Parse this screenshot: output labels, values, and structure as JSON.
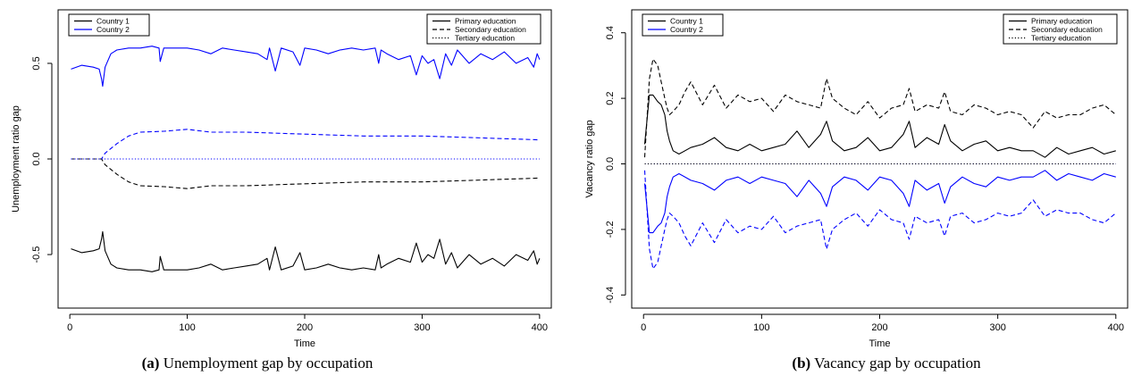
{
  "captions": [
    {
      "tag": "(a)",
      "text": "Unemployment gap by occupation"
    },
    {
      "tag": "(b)",
      "text": "Vacancy gap by occupation"
    }
  ],
  "chart_data": [
    {
      "type": "line",
      "caption": "(a) Unemployment gap by occupation",
      "xlabel": "Time",
      "ylabel": "Unemployment ratio gap",
      "xlim": [
        -10,
        410
      ],
      "ylim": [
        -0.78,
        0.78
      ],
      "xticks": [
        0,
        100,
        200,
        300,
        400
      ],
      "yticks": [
        -0.5,
        0.0,
        0.5
      ],
      "ytick_labels": [
        "-0.5",
        "0.0",
        "0.5"
      ],
      "legend_countries": [
        {
          "label": "Country 1",
          "color": "#000000"
        },
        {
          "label": "Country 2",
          "color": "#0000ff"
        }
      ],
      "legend_education": [
        {
          "label": "Primary education",
          "dash": "solid"
        },
        {
          "label": "Secondary education",
          "dash": "dashed"
        },
        {
          "label": "Tertiary education",
          "dash": "dotted"
        }
      ],
      "series": [
        {
          "name": "Country 2 – Primary education",
          "color": "#0000ff",
          "dash": "solid",
          "x": [
            1,
            10,
            20,
            25,
            27,
            28,
            30,
            35,
            40,
            50,
            60,
            70,
            76,
            77,
            80,
            90,
            100,
            110,
            120,
            130,
            140,
            150,
            160,
            168,
            170,
            175,
            180,
            190,
            196,
            200,
            210,
            220,
            230,
            240,
            250,
            260,
            263,
            265,
            270,
            280,
            290,
            295,
            300,
            305,
            310,
            315,
            320,
            325,
            330,
            340,
            350,
            360,
            370,
            380,
            390,
            395,
            398,
            400
          ],
          "y": [
            0.47,
            0.49,
            0.48,
            0.47,
            0.42,
            0.38,
            0.48,
            0.55,
            0.57,
            0.58,
            0.58,
            0.59,
            0.58,
            0.51,
            0.58,
            0.58,
            0.58,
            0.57,
            0.55,
            0.58,
            0.57,
            0.56,
            0.55,
            0.52,
            0.58,
            0.46,
            0.58,
            0.56,
            0.49,
            0.58,
            0.57,
            0.55,
            0.57,
            0.58,
            0.57,
            0.58,
            0.5,
            0.57,
            0.55,
            0.52,
            0.54,
            0.44,
            0.54,
            0.5,
            0.52,
            0.42,
            0.55,
            0.49,
            0.57,
            0.5,
            0.55,
            0.52,
            0.56,
            0.5,
            0.53,
            0.48,
            0.55,
            0.52
          ]
        },
        {
          "name": "Country 1 – Primary education",
          "color": "#000000",
          "dash": "solid",
          "x": [
            1,
            10,
            20,
            25,
            27,
            28,
            30,
            35,
            40,
            50,
            60,
            70,
            76,
            77,
            80,
            90,
            100,
            110,
            120,
            130,
            140,
            150,
            160,
            168,
            170,
            175,
            180,
            190,
            196,
            200,
            210,
            220,
            230,
            240,
            250,
            260,
            263,
            265,
            270,
            280,
            290,
            295,
            300,
            305,
            310,
            315,
            320,
            325,
            330,
            340,
            350,
            360,
            370,
            380,
            390,
            395,
            398,
            400
          ],
          "y": [
            -0.47,
            -0.49,
            -0.48,
            -0.47,
            -0.42,
            -0.38,
            -0.48,
            -0.55,
            -0.57,
            -0.58,
            -0.58,
            -0.59,
            -0.58,
            -0.51,
            -0.58,
            -0.58,
            -0.58,
            -0.57,
            -0.55,
            -0.58,
            -0.57,
            -0.56,
            -0.55,
            -0.52,
            -0.58,
            -0.46,
            -0.58,
            -0.56,
            -0.49,
            -0.58,
            -0.57,
            -0.55,
            -0.57,
            -0.58,
            -0.57,
            -0.58,
            -0.5,
            -0.57,
            -0.55,
            -0.52,
            -0.54,
            -0.44,
            -0.54,
            -0.5,
            -0.52,
            -0.42,
            -0.55,
            -0.49,
            -0.57,
            -0.5,
            -0.55,
            -0.52,
            -0.56,
            -0.5,
            -0.53,
            -0.48,
            -0.55,
            -0.52
          ]
        },
        {
          "name": "Country 2 – Secondary education",
          "color": "#0000ff",
          "dash": "dashed",
          "x": [
            1,
            27,
            30,
            40,
            50,
            60,
            80,
            100,
            120,
            150,
            200,
            250,
            300,
            350,
            400
          ],
          "y": [
            0.0,
            0.0,
            0.03,
            0.08,
            0.12,
            0.14,
            0.145,
            0.155,
            0.14,
            0.14,
            0.13,
            0.12,
            0.12,
            0.11,
            0.1
          ]
        },
        {
          "name": "Country 1 – Secondary education",
          "color": "#000000",
          "dash": "dashed",
          "x": [
            1,
            27,
            30,
            40,
            50,
            60,
            80,
            100,
            120,
            150,
            200,
            250,
            300,
            350,
            400
          ],
          "y": [
            0.0,
            0.0,
            -0.03,
            -0.08,
            -0.12,
            -0.14,
            -0.145,
            -0.155,
            -0.14,
            -0.14,
            -0.13,
            -0.12,
            -0.12,
            -0.11,
            -0.1
          ]
        },
        {
          "name": "Country 2 – Tertiary education",
          "color": "#0000ff",
          "dash": "dotted",
          "x": [
            1,
            400
          ],
          "y": [
            0.0,
            0.0
          ]
        }
      ]
    },
    {
      "type": "line",
      "caption": "(b) Vacancy gap by occupation",
      "xlabel": "Time",
      "ylabel": "Vacancy ratio gap",
      "xlim": [
        -10,
        410
      ],
      "ylim": [
        -0.44,
        0.47
      ],
      "xticks": [
        0,
        100,
        200,
        300,
        400
      ],
      "yticks": [
        -0.4,
        -0.2,
        0.0,
        0.2,
        0.4
      ],
      "ytick_labels": [
        "-0.4",
        "-0.2",
        "0.0",
        "0.2",
        "0.4"
      ],
      "legend_countries": [
        {
          "label": "Country 1",
          "color": "#000000"
        },
        {
          "label": "Country 2",
          "color": "#0000ff"
        }
      ],
      "legend_education": [
        {
          "label": "Primary education",
          "dash": "solid"
        },
        {
          "label": "Secondary education",
          "dash": "dashed"
        },
        {
          "label": "Tertiary education",
          "dash": "dotted"
        }
      ],
      "series": [
        {
          "name": "Country 1 – Secondary education",
          "color": "#000000",
          "dash": "dashed",
          "x": [
            1,
            5,
            8,
            12,
            15,
            18,
            20,
            22,
            25,
            30,
            35,
            40,
            50,
            60,
            70,
            80,
            90,
            100,
            110,
            120,
            130,
            140,
            150,
            155,
            160,
            170,
            180,
            190,
            200,
            210,
            220,
            225,
            230,
            240,
            250,
            255,
            260,
            270,
            280,
            290,
            300,
            310,
            320,
            330,
            340,
            350,
            360,
            370,
            380,
            390,
            400
          ],
          "y": [
            0.02,
            0.26,
            0.32,
            0.3,
            0.25,
            0.2,
            0.17,
            0.15,
            0.16,
            0.18,
            0.22,
            0.25,
            0.18,
            0.24,
            0.17,
            0.21,
            0.19,
            0.2,
            0.16,
            0.21,
            0.19,
            0.18,
            0.17,
            0.26,
            0.2,
            0.17,
            0.15,
            0.19,
            0.14,
            0.17,
            0.18,
            0.23,
            0.16,
            0.18,
            0.17,
            0.22,
            0.16,
            0.15,
            0.18,
            0.17,
            0.15,
            0.16,
            0.15,
            0.11,
            0.16,
            0.14,
            0.15,
            0.15,
            0.17,
            0.18,
            0.15
          ]
        },
        {
          "name": "Country 1 – Primary education",
          "color": "#000000",
          "dash": "solid",
          "x": [
            1,
            5,
            8,
            12,
            15,
            18,
            20,
            22,
            25,
            30,
            40,
            50,
            60,
            70,
            80,
            90,
            100,
            110,
            120,
            130,
            140,
            150,
            155,
            160,
            170,
            180,
            190,
            200,
            210,
            220,
            225,
            230,
            240,
            250,
            255,
            260,
            270,
            280,
            290,
            300,
            310,
            320,
            330,
            340,
            350,
            360,
            370,
            380,
            390,
            400
          ],
          "y": [
            0.06,
            0.21,
            0.21,
            0.19,
            0.18,
            0.15,
            0.1,
            0.07,
            0.04,
            0.03,
            0.05,
            0.06,
            0.08,
            0.05,
            0.04,
            0.06,
            0.04,
            0.05,
            0.06,
            0.1,
            0.05,
            0.09,
            0.13,
            0.07,
            0.04,
            0.05,
            0.08,
            0.04,
            0.05,
            0.09,
            0.13,
            0.05,
            0.08,
            0.06,
            0.12,
            0.07,
            0.04,
            0.06,
            0.07,
            0.04,
            0.05,
            0.04,
            0.04,
            0.02,
            0.05,
            0.03,
            0.04,
            0.05,
            0.03,
            0.04
          ]
        },
        {
          "name": "Country 2 – Tertiary education",
          "color": "#0000ff",
          "dash": "dotted",
          "x": [
            1,
            400
          ],
          "y": [
            0.0,
            0.0
          ]
        },
        {
          "name": "Country 2 – Primary education",
          "color": "#0000ff",
          "dash": "solid",
          "x": [
            1,
            5,
            8,
            12,
            15,
            18,
            20,
            22,
            25,
            30,
            40,
            50,
            60,
            70,
            80,
            90,
            100,
            110,
            120,
            130,
            140,
            150,
            155,
            160,
            170,
            180,
            190,
            200,
            210,
            220,
            225,
            230,
            240,
            250,
            255,
            260,
            270,
            280,
            290,
            300,
            310,
            320,
            330,
            340,
            350,
            360,
            370,
            380,
            390,
            400
          ],
          "y": [
            -0.06,
            -0.21,
            -0.21,
            -0.19,
            -0.18,
            -0.15,
            -0.1,
            -0.07,
            -0.04,
            -0.03,
            -0.05,
            -0.06,
            -0.08,
            -0.05,
            -0.04,
            -0.06,
            -0.04,
            -0.05,
            -0.06,
            -0.1,
            -0.05,
            -0.09,
            -0.13,
            -0.07,
            -0.04,
            -0.05,
            -0.08,
            -0.04,
            -0.05,
            -0.09,
            -0.13,
            -0.05,
            -0.08,
            -0.06,
            -0.12,
            -0.07,
            -0.04,
            -0.06,
            -0.07,
            -0.04,
            -0.05,
            -0.04,
            -0.04,
            -0.02,
            -0.05,
            -0.03,
            -0.04,
            -0.05,
            -0.03,
            -0.04
          ]
        },
        {
          "name": "Country 2 – Secondary education",
          "color": "#0000ff",
          "dash": "dashed",
          "x": [
            1,
            5,
            8,
            12,
            15,
            18,
            20,
            22,
            25,
            30,
            35,
            40,
            50,
            60,
            70,
            80,
            90,
            100,
            110,
            120,
            130,
            140,
            150,
            155,
            160,
            170,
            180,
            190,
            200,
            210,
            220,
            225,
            230,
            240,
            250,
            255,
            260,
            270,
            280,
            290,
            300,
            310,
            320,
            330,
            340,
            350,
            360,
            370,
            380,
            390,
            400
          ],
          "y": [
            -0.02,
            -0.26,
            -0.32,
            -0.3,
            -0.25,
            -0.2,
            -0.17,
            -0.15,
            -0.16,
            -0.18,
            -0.22,
            -0.25,
            -0.18,
            -0.24,
            -0.17,
            -0.21,
            -0.19,
            -0.2,
            -0.16,
            -0.21,
            -0.19,
            -0.18,
            -0.17,
            -0.26,
            -0.2,
            -0.17,
            -0.15,
            -0.19,
            -0.14,
            -0.17,
            -0.18,
            -0.23,
            -0.16,
            -0.18,
            -0.17,
            -0.22,
            -0.16,
            -0.15,
            -0.18,
            -0.17,
            -0.15,
            -0.16,
            -0.15,
            -0.11,
            -0.16,
            -0.14,
            -0.15,
            -0.15,
            -0.17,
            -0.18,
            -0.15
          ]
        },
        {
          "name": "Country 1 – Tertiary education",
          "color": "#000000",
          "dash": "dotted",
          "x": [
            1,
            400
          ],
          "y": [
            0.0,
            0.0
          ]
        }
      ]
    }
  ]
}
